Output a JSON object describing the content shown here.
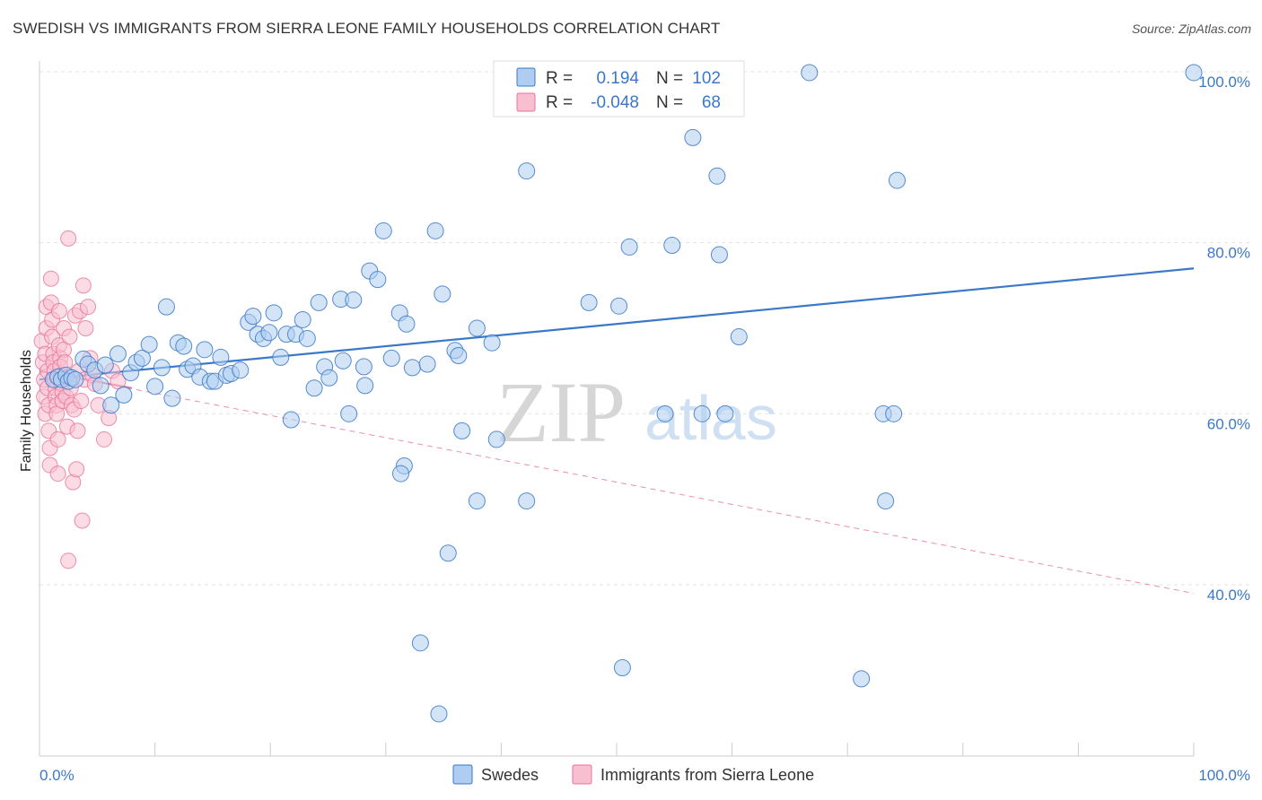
{
  "header": {
    "title": "SWEDISH VS IMMIGRANTS FROM SIERRA LEONE FAMILY HOUSEHOLDS CORRELATION CHART",
    "source": "Source: ZipAtlas.com"
  },
  "watermark": {
    "zip": "ZIP",
    "atlas": "atlas"
  },
  "colors": {
    "blue": "#3b78c9",
    "blue_fill": "#aecdf0",
    "pink": "#e8739a",
    "pink_fill": "#f7bfd0",
    "grid": "#e3e3e3"
  },
  "legend_top": {
    "rows": [
      {
        "r_label": "R =",
        "r_value": "0.194",
        "n_label": "N =",
        "n_value": "102"
      },
      {
        "r_label": "R =",
        "r_value": "-0.048",
        "n_label": "N =",
        "n_value": "68"
      }
    ]
  },
  "chart_data": {
    "type": "scatter",
    "title": "SWEDISH VS IMMIGRANTS FROM SIERRA LEONE FAMILY HOUSEHOLDS CORRELATION CHART",
    "xlabel": "",
    "ylabel": "Family Households",
    "xlim": [
      0,
      100
    ],
    "ylim": [
      20,
      102
    ],
    "x_tick_labels": [
      "0.0%",
      "100.0%"
    ],
    "y_ticks": [
      40,
      60,
      80,
      100
    ],
    "y_tick_labels": [
      "40.0%",
      "60.0%",
      "80.0%",
      "100.0%"
    ],
    "grid": true,
    "legend_position": "top-center",
    "series": [
      {
        "name": "Swedes",
        "color": "#3b78c9",
        "r": 0.194,
        "n": 102,
        "trend": {
          "x": [
            0,
            100
          ],
          "y": [
            64.0,
            77.0
          ],
          "style": "solid"
        },
        "points": [
          [
            1.2,
            64.0
          ],
          [
            1.6,
            64.3
          ],
          [
            1.9,
            64.0
          ],
          [
            2.3,
            64.5
          ],
          [
            2.5,
            63.8
          ],
          [
            2.8,
            64.2
          ],
          [
            3.1,
            64.0
          ],
          [
            3.8,
            66.4
          ],
          [
            4.2,
            65.8
          ],
          [
            4.8,
            65.1
          ],
          [
            5.3,
            63.3
          ],
          [
            5.7,
            65.7
          ],
          [
            6.2,
            61.0
          ],
          [
            6.8,
            67.0
          ],
          [
            7.3,
            62.2
          ],
          [
            7.9,
            64.8
          ],
          [
            8.4,
            66.0
          ],
          [
            8.9,
            66.5
          ],
          [
            9.5,
            68.1
          ],
          [
            10.0,
            63.2
          ],
          [
            10.6,
            65.4
          ],
          [
            11.0,
            72.5
          ],
          [
            11.5,
            61.8
          ],
          [
            12.0,
            68.3
          ],
          [
            12.5,
            67.9
          ],
          [
            12.8,
            65.2
          ],
          [
            13.3,
            65.6
          ],
          [
            13.9,
            64.3
          ],
          [
            14.3,
            67.5
          ],
          [
            14.8,
            63.8
          ],
          [
            15.2,
            63.8
          ],
          [
            15.7,
            66.6
          ],
          [
            16.2,
            64.5
          ],
          [
            16.6,
            64.7
          ],
          [
            17.4,
            65.1
          ],
          [
            18.1,
            70.7
          ],
          [
            18.5,
            71.4
          ],
          [
            18.9,
            69.3
          ],
          [
            19.4,
            68.8
          ],
          [
            19.9,
            69.5
          ],
          [
            20.3,
            71.8
          ],
          [
            20.9,
            66.6
          ],
          [
            21.4,
            69.3
          ],
          [
            22.2,
            69.3
          ],
          [
            22.8,
            71.0
          ],
          [
            23.2,
            68.8
          ],
          [
            23.8,
            63.0
          ],
          [
            24.2,
            73.0
          ],
          [
            24.7,
            65.5
          ],
          [
            25.1,
            64.2
          ],
          [
            26.1,
            73.4
          ],
          [
            26.3,
            66.2
          ],
          [
            27.2,
            73.3
          ],
          [
            28.1,
            65.5
          ],
          [
            28.6,
            76.7
          ],
          [
            29.3,
            75.7
          ],
          [
            29.8,
            81.4
          ],
          [
            30.5,
            66.5
          ],
          [
            31.2,
            71.8
          ],
          [
            31.8,
            70.5
          ],
          [
            32.3,
            65.4
          ],
          [
            33.6,
            65.8
          ],
          [
            34.9,
            74.0
          ],
          [
            36.0,
            67.4
          ],
          [
            36.3,
            66.8
          ],
          [
            37.9,
            70.0
          ],
          [
            39.2,
            68.3
          ],
          [
            42.2,
            88.4
          ],
          [
            43.7,
            99.9
          ],
          [
            47.6,
            73.0
          ],
          [
            50.2,
            72.6
          ],
          [
            51.1,
            79.5
          ],
          [
            54.8,
            79.7
          ],
          [
            56.6,
            92.3
          ],
          [
            58.7,
            87.8
          ],
          [
            58.9,
            78.6
          ],
          [
            60.6,
            69.0
          ],
          [
            66.7,
            99.9
          ],
          [
            74.3,
            87.3
          ],
          [
            100.0,
            99.9
          ],
          [
            58.2,
            99.9
          ],
          [
            26.8,
            60.0
          ],
          [
            21.8,
            59.3
          ],
          [
            28.2,
            63.3
          ],
          [
            34.3,
            81.4
          ],
          [
            31.6,
            53.9
          ],
          [
            36.6,
            58.0
          ],
          [
            37.9,
            49.8
          ],
          [
            39.6,
            57.0
          ],
          [
            35.4,
            43.7
          ],
          [
            31.3,
            53.0
          ],
          [
            42.2,
            49.8
          ],
          [
            54.2,
            60.0
          ],
          [
            57.4,
            60.0
          ],
          [
            59.4,
            60.0
          ],
          [
            73.1,
            60.0
          ],
          [
            74.0,
            60.0
          ],
          [
            73.3,
            49.8
          ],
          [
            33.0,
            33.2
          ],
          [
            50.5,
            30.3
          ],
          [
            71.2,
            29.0
          ],
          [
            34.6,
            24.9
          ]
        ]
      },
      {
        "name": "Immigrants from Sierra Leone",
        "color": "#e8739a",
        "r": -0.048,
        "n": 68,
        "trend_solid": {
          "x": [
            0,
            8
          ],
          "y": [
            65.0,
            63.0
          ]
        },
        "trend_dashed": {
          "x": [
            0,
            100
          ],
          "y": [
            65.0,
            39.0
          ]
        },
        "points": [
          [
            0.2,
            68.5
          ],
          [
            0.3,
            66.0
          ],
          [
            0.4,
            64.0
          ],
          [
            0.4,
            62.0
          ],
          [
            0.5,
            60.0
          ],
          [
            0.5,
            67.0
          ],
          [
            0.6,
            70.0
          ],
          [
            0.6,
            72.5
          ],
          [
            0.7,
            65.0
          ],
          [
            0.7,
            63.0
          ],
          [
            0.8,
            61.0
          ],
          [
            0.8,
            58.0
          ],
          [
            0.9,
            56.0
          ],
          [
            0.9,
            54.0
          ],
          [
            1.0,
            75.8
          ],
          [
            1.0,
            73.0
          ],
          [
            1.1,
            71.0
          ],
          [
            1.1,
            69.0
          ],
          [
            1.2,
            67.0
          ],
          [
            1.2,
            66.0
          ],
          [
            1.3,
            65.0
          ],
          [
            1.3,
            64.0
          ],
          [
            1.4,
            63.0
          ],
          [
            1.4,
            62.0
          ],
          [
            1.5,
            61.0
          ],
          [
            1.5,
            60.0
          ],
          [
            1.6,
            57.0
          ],
          [
            1.6,
            53.0
          ],
          [
            1.7,
            72.0
          ],
          [
            1.7,
            68.0
          ],
          [
            1.8,
            66.5
          ],
          [
            1.8,
            65.5
          ],
          [
            1.9,
            64.5
          ],
          [
            1.9,
            63.5
          ],
          [
            2.0,
            62.5
          ],
          [
            2.0,
            61.5
          ],
          [
            2.1,
            70.0
          ],
          [
            2.1,
            67.5
          ],
          [
            2.2,
            66.0
          ],
          [
            2.3,
            64.0
          ],
          [
            2.3,
            62.0
          ],
          [
            2.4,
            58.5
          ],
          [
            2.5,
            80.5
          ],
          [
            2.5,
            42.8
          ],
          [
            2.6,
            69.0
          ],
          [
            2.7,
            63.0
          ],
          [
            2.8,
            61.0
          ],
          [
            2.9,
            52.0
          ],
          [
            3.0,
            60.5
          ],
          [
            3.1,
            71.5
          ],
          [
            3.2,
            53.5
          ],
          [
            3.3,
            58.0
          ],
          [
            3.4,
            65.0
          ],
          [
            3.5,
            72.0
          ],
          [
            3.6,
            61.5
          ],
          [
            3.7,
            47.5
          ],
          [
            3.8,
            75.0
          ],
          [
            3.9,
            64.0
          ],
          [
            4.0,
            70.0
          ],
          [
            4.2,
            72.5
          ],
          [
            4.4,
            66.5
          ],
          [
            4.6,
            64.5
          ],
          [
            4.8,
            63.5
          ],
          [
            5.1,
            61.0
          ],
          [
            5.6,
            57.0
          ],
          [
            6.0,
            59.5
          ],
          [
            6.3,
            65.0
          ],
          [
            6.8,
            63.8
          ]
        ]
      }
    ]
  },
  "legend_bottom": [
    {
      "label": "Swedes"
    },
    {
      "label": "Immigrants from Sierra Leone"
    }
  ]
}
